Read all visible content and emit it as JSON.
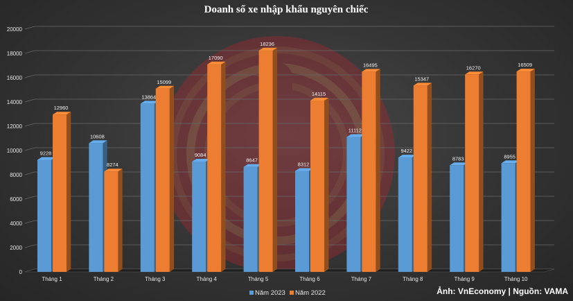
{
  "chart_data": {
    "type": "bar",
    "title": "Doanh số xe nhập khẩu nguyên chiếc",
    "categories": [
      "Tháng 1",
      "Tháng 2",
      "Tháng 3",
      "Tháng 4",
      "Tháng 5",
      "Tháng 6",
      "Tháng 7",
      "Tháng 8",
      "Tháng 9",
      "Tháng 10"
    ],
    "series": [
      {
        "name": "Năm 2023",
        "color": "#5b9bd5",
        "values": [
          9228,
          10608,
          13864,
          9084,
          8647,
          8312,
          11112,
          9422,
          8783,
          8955
        ]
      },
      {
        "name": "Năm 2022",
        "color": "#ed7d31",
        "values": [
          12960,
          8274,
          15099,
          17090,
          18236,
          14115,
          16495,
          15347,
          16270,
          16509
        ]
      }
    ],
    "ylim": [
      0,
      20000
    ],
    "yticks": [
      0,
      2000,
      4000,
      6000,
      8000,
      10000,
      12000,
      14000,
      16000,
      18000,
      20000
    ],
    "xlabel": "",
    "ylabel": "",
    "grid": true,
    "legend_position": "bottom"
  },
  "credit": "Ảnh: VnEconomy | Nguồn: VAMA",
  "watermark": "logo"
}
